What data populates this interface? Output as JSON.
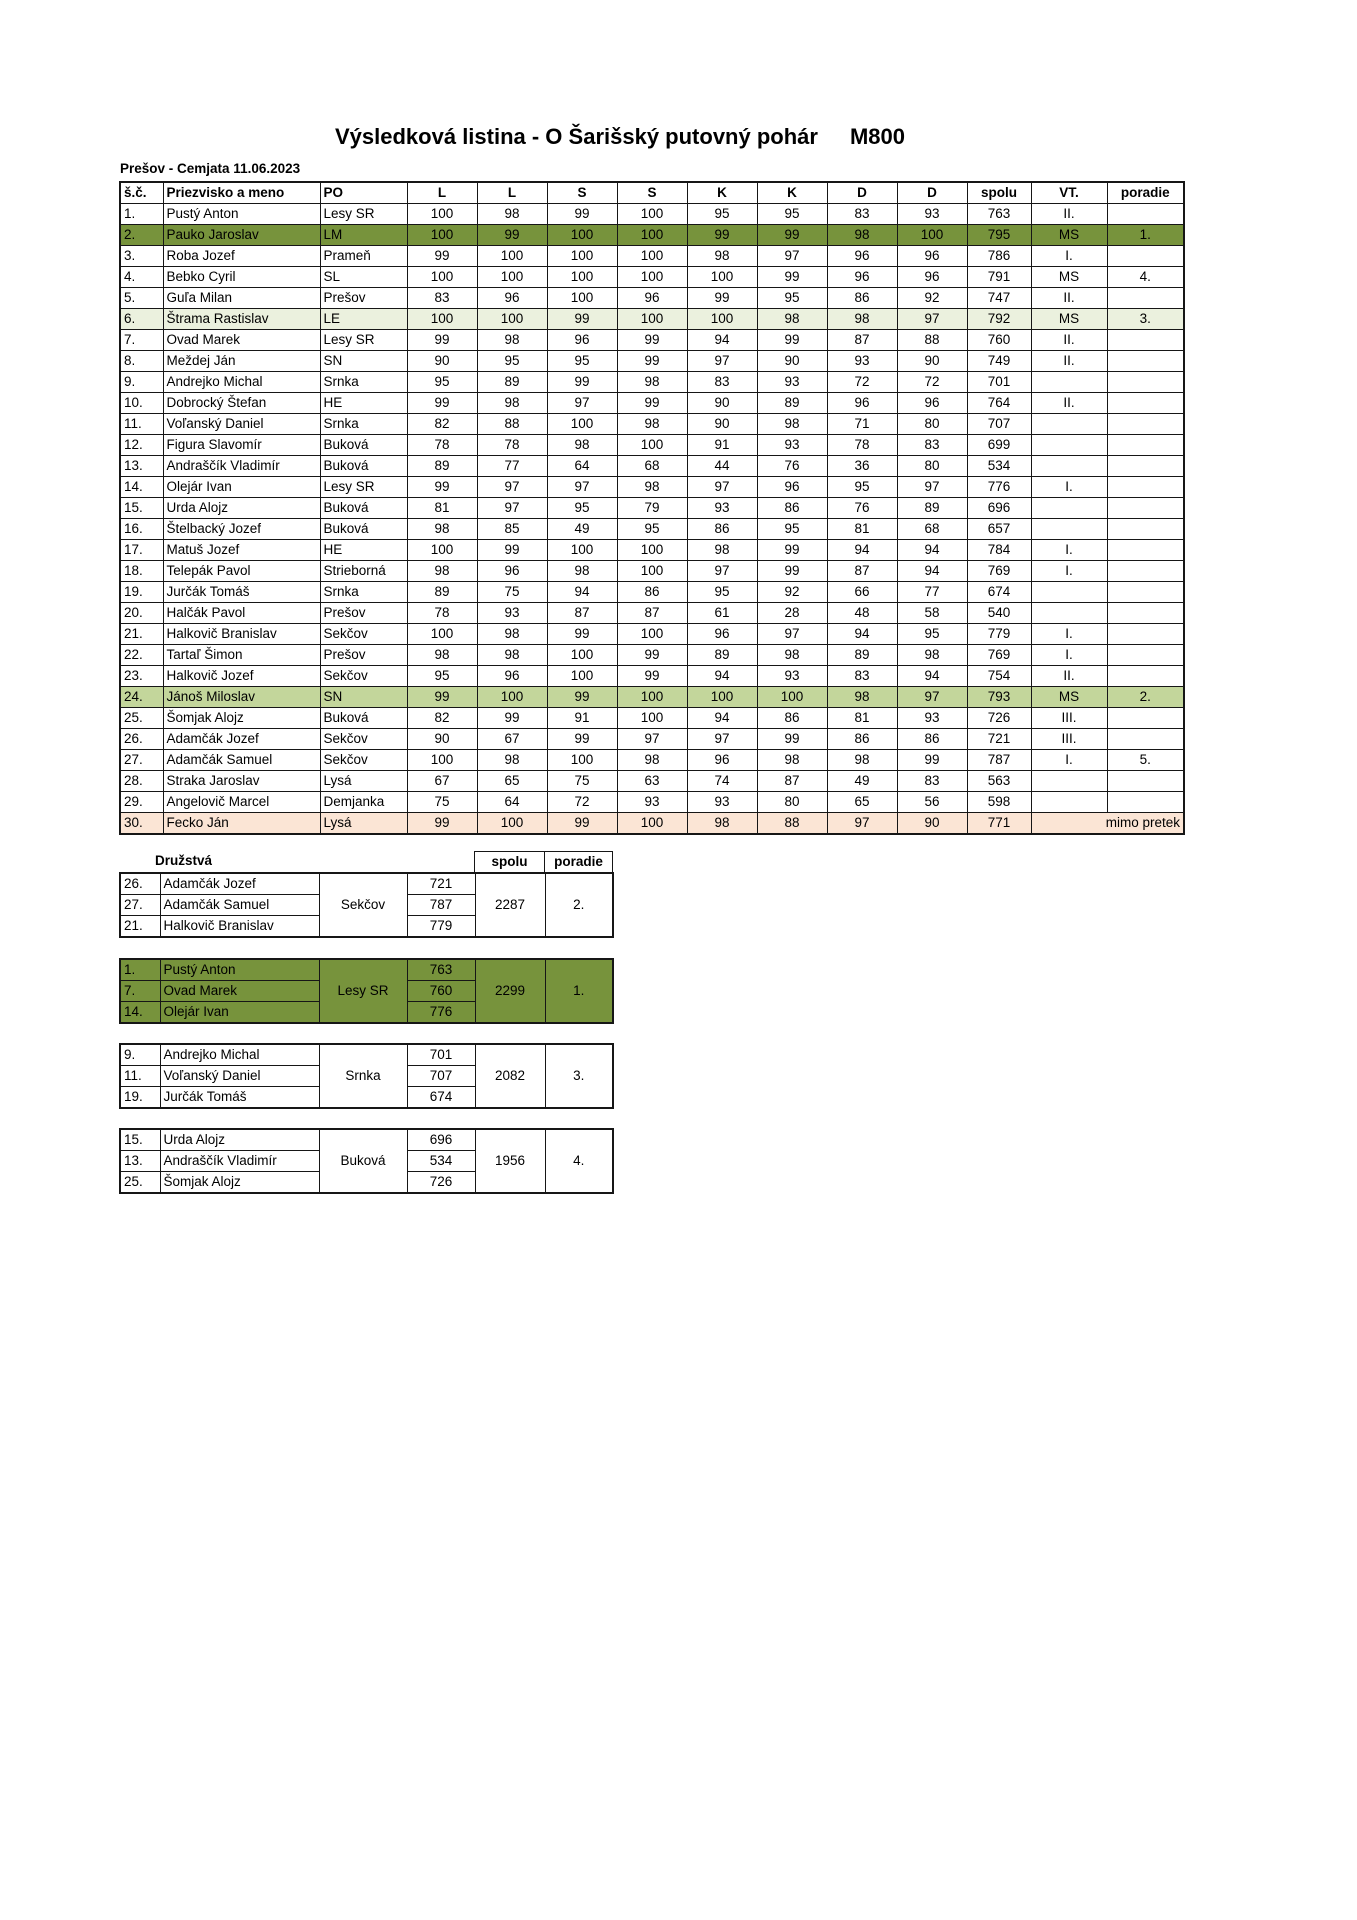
{
  "page": {
    "title": "Výsledková listina - O Šarišský putovný pohár",
    "title_code": "M800",
    "subtitle": "Prešov - Cemjata 11.06.2023"
  },
  "colors": {
    "dark_green": "#77933C",
    "pale_green": "#EBF1DE",
    "medium_green": "#C3D69B",
    "peach": "#FBE5D5"
  },
  "main_table": {
    "headers": [
      "š.č.",
      "Priezvisko a meno",
      "PO",
      "L",
      "L",
      "S",
      "S",
      "K",
      "K",
      "D",
      "D",
      "spolu",
      "VT.",
      "poradie"
    ],
    "rows": [
      {
        "sc": "1.",
        "name": "Pustý Anton",
        "po": "Lesy SR",
        "scores": [
          100,
          98,
          99,
          100,
          95,
          95,
          83,
          93
        ],
        "spolu": 763,
        "vt": "II.",
        "poradie": "",
        "hl": null
      },
      {
        "sc": "2.",
        "name": "Pauko Jaroslav",
        "po": "LM",
        "scores": [
          100,
          99,
          100,
          100,
          99,
          99,
          98,
          100
        ],
        "spolu": 795,
        "vt": "MS",
        "poradie": "1.",
        "hl": "dark_green"
      },
      {
        "sc": "3.",
        "name": "Roba Jozef",
        "po": "Prameň",
        "scores": [
          99,
          100,
          100,
          100,
          98,
          97,
          96,
          96
        ],
        "spolu": 786,
        "vt": "I.",
        "poradie": "",
        "hl": null
      },
      {
        "sc": "4.",
        "name": "Bebko Cyril",
        "po": "SL",
        "scores": [
          100,
          100,
          100,
          100,
          100,
          99,
          96,
          96
        ],
        "spolu": 791,
        "vt": "MS",
        "poradie": "4.",
        "hl": null
      },
      {
        "sc": "5.",
        "name": "Guľa Milan",
        "po": "Prešov",
        "scores": [
          83,
          96,
          100,
          96,
          99,
          95,
          86,
          92
        ],
        "spolu": 747,
        "vt": "II.",
        "poradie": "",
        "hl": null
      },
      {
        "sc": "6.",
        "name": "Štrama Rastislav",
        "po": "LE",
        "scores": [
          100,
          100,
          99,
          100,
          100,
          98,
          98,
          97
        ],
        "spolu": 792,
        "vt": "MS",
        "poradie": "3.",
        "hl": "pale_green"
      },
      {
        "sc": "7.",
        "name": "Ovad Marek",
        "po": "Lesy SR",
        "scores": [
          99,
          98,
          96,
          99,
          94,
          99,
          87,
          88
        ],
        "spolu": 760,
        "vt": "II.",
        "poradie": "",
        "hl": null
      },
      {
        "sc": "8.",
        "name": "Meždej Ján",
        "po": "SN",
        "scores": [
          90,
          95,
          95,
          99,
          97,
          90,
          93,
          90
        ],
        "spolu": 749,
        "vt": "II.",
        "poradie": "",
        "hl": null
      },
      {
        "sc": "9.",
        "name": "Andrejko Michal",
        "po": "Srnka",
        "scores": [
          95,
          89,
          99,
          98,
          83,
          93,
          72,
          72
        ],
        "spolu": 701,
        "vt": "",
        "poradie": "",
        "hl": null
      },
      {
        "sc": "10.",
        "name": "Dobrocký Štefan",
        "po": "HE",
        "scores": [
          99,
          98,
          97,
          99,
          90,
          89,
          96,
          96
        ],
        "spolu": 764,
        "vt": "II.",
        "poradie": "",
        "hl": null
      },
      {
        "sc": "11.",
        "name": "Voľanský Daniel",
        "po": "Srnka",
        "scores": [
          82,
          88,
          100,
          98,
          90,
          98,
          71,
          80
        ],
        "spolu": 707,
        "vt": "",
        "poradie": "",
        "hl": null
      },
      {
        "sc": "12.",
        "name": "Figura Slavomír",
        "po": "Buková",
        "scores": [
          78,
          78,
          98,
          100,
          91,
          93,
          78,
          83
        ],
        "spolu": 699,
        "vt": "",
        "poradie": "",
        "hl": null
      },
      {
        "sc": "13.",
        "name": "Andraščík Vladimír",
        "po": "Buková",
        "scores": [
          89,
          77,
          64,
          68,
          44,
          76,
          36,
          80
        ],
        "spolu": 534,
        "vt": "",
        "poradie": "",
        "hl": null
      },
      {
        "sc": "14.",
        "name": "Olejár Ivan",
        "po": "Lesy SR",
        "scores": [
          99,
          97,
          97,
          98,
          97,
          96,
          95,
          97
        ],
        "spolu": 776,
        "vt": "I.",
        "poradie": "",
        "hl": null
      },
      {
        "sc": "15.",
        "name": "Urda Alojz",
        "po": "Buková",
        "scores": [
          81,
          97,
          95,
          79,
          93,
          86,
          76,
          89
        ],
        "spolu": 696,
        "vt": "",
        "poradie": "",
        "hl": null
      },
      {
        "sc": "16.",
        "name": "Štelbacký Jozef",
        "po": "Buková",
        "scores": [
          98,
          85,
          49,
          95,
          86,
          95,
          81,
          68
        ],
        "spolu": 657,
        "vt": "",
        "poradie": "",
        "hl": null
      },
      {
        "sc": "17.",
        "name": "Matuš Jozef",
        "po": "HE",
        "scores": [
          100,
          99,
          100,
          100,
          98,
          99,
          94,
          94
        ],
        "spolu": 784,
        "vt": "I.",
        "poradie": "",
        "hl": null
      },
      {
        "sc": "18.",
        "name": "Telepák Pavol",
        "po": "Strieborná",
        "scores": [
          98,
          96,
          98,
          100,
          97,
          99,
          87,
          94
        ],
        "spolu": 769,
        "vt": "I.",
        "poradie": "",
        "hl": null
      },
      {
        "sc": "19.",
        "name": "Jurčák Tomáš",
        "po": "Srnka",
        "scores": [
          89,
          75,
          94,
          86,
          95,
          92,
          66,
          77
        ],
        "spolu": 674,
        "vt": "",
        "poradie": "",
        "hl": null
      },
      {
        "sc": "20.",
        "name": "Halčák Pavol",
        "po": "Prešov",
        "scores": [
          78,
          93,
          87,
          87,
          61,
          28,
          48,
          58
        ],
        "spolu": 540,
        "vt": "",
        "poradie": "",
        "hl": null
      },
      {
        "sc": "21.",
        "name": "Halkovič Branislav",
        "po": "Sekčov",
        "scores": [
          100,
          98,
          99,
          100,
          96,
          97,
          94,
          95
        ],
        "spolu": 779,
        "vt": "I.",
        "poradie": "",
        "hl": null
      },
      {
        "sc": "22.",
        "name": "Tartaľ Šimon",
        "po": "Prešov",
        "scores": [
          98,
          98,
          100,
          99,
          89,
          98,
          89,
          98
        ],
        "spolu": 769,
        "vt": "I.",
        "poradie": "",
        "hl": null
      },
      {
        "sc": "23.",
        "name": "Halkovič Jozef",
        "po": "Sekčov",
        "scores": [
          95,
          96,
          100,
          99,
          94,
          93,
          83,
          94
        ],
        "spolu": 754,
        "vt": "II.",
        "poradie": "",
        "hl": null
      },
      {
        "sc": "24.",
        "name": "Jánoš Miloslav",
        "po": "SN",
        "scores": [
          99,
          100,
          99,
          100,
          100,
          100,
          98,
          97
        ],
        "spolu": 793,
        "vt": "MS",
        "poradie": "2.",
        "hl": "medium_green"
      },
      {
        "sc": "25.",
        "name": "Šomjak Alojz",
        "po": "Buková",
        "scores": [
          82,
          99,
          91,
          100,
          94,
          86,
          81,
          93
        ],
        "spolu": 726,
        "vt": "III.",
        "poradie": "",
        "hl": null
      },
      {
        "sc": "26.",
        "name": "Adamčák Jozef",
        "po": "Sekčov",
        "scores": [
          90,
          67,
          99,
          97,
          97,
          99,
          86,
          86
        ],
        "spolu": 721,
        "vt": "III.",
        "poradie": "",
        "hl": null
      },
      {
        "sc": "27.",
        "name": "Adamčák Samuel",
        "po": "Sekčov",
        "scores": [
          100,
          98,
          100,
          98,
          96,
          98,
          98,
          99
        ],
        "spolu": 787,
        "vt": "I.",
        "poradie": "5.",
        "hl": null
      },
      {
        "sc": "28.",
        "name": "Straka Jaroslav",
        "po": "Lysá",
        "scores": [
          67,
          65,
          75,
          63,
          74,
          87,
          49,
          83
        ],
        "spolu": 563,
        "vt": "",
        "poradie": "",
        "hl": null
      },
      {
        "sc": "29.",
        "name": "Angelovič Marcel",
        "po": "Demjanka",
        "scores": [
          75,
          64,
          72,
          93,
          93,
          80,
          65,
          56
        ],
        "spolu": 598,
        "vt": "",
        "poradie": "",
        "hl": null
      },
      {
        "sc": "30.",
        "name": "Fecko Ján",
        "po": "Lysá",
        "scores": [
          99,
          100,
          99,
          100,
          98,
          88,
          97,
          90
        ],
        "spolu": 771,
        "note": "mimo pretek",
        "hl": "peach"
      }
    ]
  },
  "teams_section": {
    "label": "Družstvá",
    "headers": {
      "spolu": "spolu",
      "poradie": "poradie"
    },
    "teams": [
      {
        "po": "Sekčov",
        "members": [
          {
            "sc": "26.",
            "name": "Adamčák Jozef",
            "score": 721
          },
          {
            "sc": "27.",
            "name": "Adamčák Samuel",
            "score": 787
          },
          {
            "sc": "21.",
            "name": "Halkovič Branislav",
            "score": 779
          }
        ],
        "spolu": 2287,
        "poradie": "2.",
        "hl": null
      },
      {
        "po": "Lesy SR",
        "members": [
          {
            "sc": "1.",
            "name": "Pustý Anton",
            "score": 763
          },
          {
            "sc": "7.",
            "name": "Ovad Marek",
            "score": 760
          },
          {
            "sc": "14.",
            "name": "Olejár Ivan",
            "score": 776
          }
        ],
        "spolu": 2299,
        "poradie": "1.",
        "hl": "dark_green"
      },
      {
        "po": "Srnka",
        "members": [
          {
            "sc": "9.",
            "name": "Andrejko Michal",
            "score": 701
          },
          {
            "sc": "11.",
            "name": "Voľanský Daniel",
            "score": 707
          },
          {
            "sc": "19.",
            "name": "Jurčák Tomáš",
            "score": 674
          }
        ],
        "spolu": 2082,
        "poradie": "3.",
        "hl": null
      },
      {
        "po": "Buková",
        "members": [
          {
            "sc": "15.",
            "name": "Urda Alojz",
            "score": 696
          },
          {
            "sc": "13.",
            "name": "Andraščík Vladimír",
            "score": 534
          },
          {
            "sc": "25.",
            "name": "Šomjak Alojz",
            "score": 726
          }
        ],
        "spolu": 1956,
        "poradie": "4.",
        "hl": null
      }
    ]
  }
}
